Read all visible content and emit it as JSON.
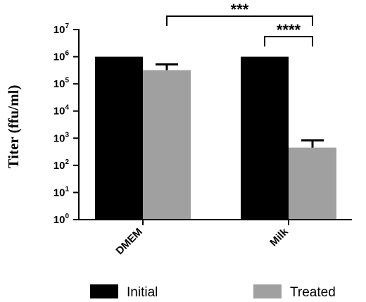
{
  "chart_data": {
    "type": "bar",
    "categories": [
      "DMEM",
      "Milk"
    ],
    "series": [
      {
        "name": "Initial",
        "values": [
          1000000,
          1000000
        ],
        "error": [
          0,
          0
        ],
        "color": "#000000"
      },
      {
        "name": "Treated",
        "values": [
          320000,
          450
        ],
        "error": [
          200000,
          380
        ],
        "color": "#a0a0a0"
      }
    ],
    "ylabel": "Titer (ffu/ml)",
    "yscale": "log",
    "ylim": [
      1,
      10000000
    ],
    "yticks": [
      {
        "base": "10",
        "exp": "0",
        "value": 1
      },
      {
        "base": "10",
        "exp": "1",
        "value": 10
      },
      {
        "base": "10",
        "exp": "2",
        "value": 100
      },
      {
        "base": "10",
        "exp": "3",
        "value": 1000
      },
      {
        "base": "10",
        "exp": "4",
        "value": 10000
      },
      {
        "base": "10",
        "exp": "5",
        "value": 100000
      },
      {
        "base": "10",
        "exp": "6",
        "value": 1000000
      },
      {
        "base": "10",
        "exp": "7",
        "value": 10000000
      }
    ],
    "significance": [
      {
        "label": "***",
        "from": "DMEM Treated",
        "to": "Milk Treated"
      },
      {
        "label": "****",
        "from": "Milk Initial",
        "to": "Milk Treated"
      }
    ],
    "legend_position": "bottom"
  }
}
